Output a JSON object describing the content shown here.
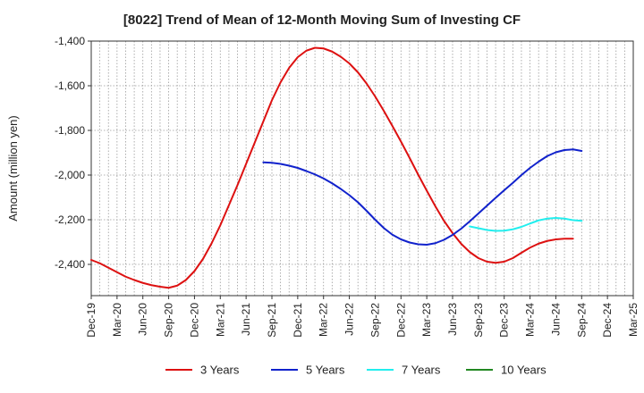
{
  "chart_data": {
    "type": "line",
    "title": "[8022]  Trend of Mean of 12-Month Moving Sum of Investing CF",
    "xlabel": "",
    "ylabel": "Amount (million yen)",
    "ylim": [
      -2540,
      -1400
    ],
    "yticks": [
      -1400,
      -1600,
      -1800,
      -2000,
      -2200,
      -2400
    ],
    "ytick_labels": [
      "-1,400",
      "-1,600",
      "-1,800",
      "-2,000",
      "-2,200",
      "-2,400"
    ],
    "x_tick_labels": [
      "Dec-19",
      "Mar-20",
      "Jun-20",
      "Sep-20",
      "Dec-20",
      "Mar-21",
      "Jun-21",
      "Sep-21",
      "Dec-21",
      "Mar-22",
      "Jun-22",
      "Sep-22",
      "Dec-22",
      "Mar-23",
      "Jun-23",
      "Sep-23",
      "Dec-23",
      "Mar-24",
      "Jun-24",
      "Sep-24",
      "Dec-24",
      "Mar-25"
    ],
    "grid": true,
    "legend_position": "bottom",
    "series": [
      {
        "name": "3 Years",
        "color": "#dd1111",
        "points": [
          {
            "x": "Dec-19",
            "y": -2380
          },
          {
            "x": "Jan-20",
            "y": -2395
          },
          {
            "x": "Feb-20",
            "y": -2415
          },
          {
            "x": "Mar-20",
            "y": -2435
          },
          {
            "x": "Apr-20",
            "y": -2455
          },
          {
            "x": "May-20",
            "y": -2470
          },
          {
            "x": "Jun-20",
            "y": -2483
          },
          {
            "x": "Jul-20",
            "y": -2493
          },
          {
            "x": "Aug-20",
            "y": -2500
          },
          {
            "x": "Sep-20",
            "y": -2505
          },
          {
            "x": "Oct-20",
            "y": -2495
          },
          {
            "x": "Nov-20",
            "y": -2470
          },
          {
            "x": "Dec-20",
            "y": -2430
          },
          {
            "x": "Jan-21",
            "y": -2375
          },
          {
            "x": "Feb-21",
            "y": -2305
          },
          {
            "x": "Mar-21",
            "y": -2225
          },
          {
            "x": "Apr-21",
            "y": -2135
          },
          {
            "x": "May-21",
            "y": -2045
          },
          {
            "x": "Jun-21",
            "y": -1950
          },
          {
            "x": "Jul-21",
            "y": -1855
          },
          {
            "x": "Aug-21",
            "y": -1760
          },
          {
            "x": "Sep-21",
            "y": -1665
          },
          {
            "x": "Oct-21",
            "y": -1585
          },
          {
            "x": "Nov-21",
            "y": -1520
          },
          {
            "x": "Dec-21",
            "y": -1472
          },
          {
            "x": "Jan-22",
            "y": -1443
          },
          {
            "x": "Feb-22",
            "y": -1430
          },
          {
            "x": "Mar-22",
            "y": -1433
          },
          {
            "x": "Apr-22",
            "y": -1447
          },
          {
            "x": "May-22",
            "y": -1470
          },
          {
            "x": "Jun-22",
            "y": -1500
          },
          {
            "x": "Jul-22",
            "y": -1540
          },
          {
            "x": "Aug-22",
            "y": -1590
          },
          {
            "x": "Sep-22",
            "y": -1648
          },
          {
            "x": "Oct-22",
            "y": -1712
          },
          {
            "x": "Nov-22",
            "y": -1780
          },
          {
            "x": "Dec-22",
            "y": -1850
          },
          {
            "x": "Jan-23",
            "y": -1923
          },
          {
            "x": "Feb-23",
            "y": -1998
          },
          {
            "x": "Mar-23",
            "y": -2070
          },
          {
            "x": "Apr-23",
            "y": -2140
          },
          {
            "x": "May-23",
            "y": -2205
          },
          {
            "x": "Jun-23",
            "y": -2260
          },
          {
            "x": "Jul-23",
            "y": -2308
          },
          {
            "x": "Aug-23",
            "y": -2345
          },
          {
            "x": "Sep-23",
            "y": -2372
          },
          {
            "x": "Oct-23",
            "y": -2388
          },
          {
            "x": "Nov-23",
            "y": -2393
          },
          {
            "x": "Dec-23",
            "y": -2388
          },
          {
            "x": "Jan-24",
            "y": -2372
          },
          {
            "x": "Feb-24",
            "y": -2348
          },
          {
            "x": "Mar-24",
            "y": -2325
          },
          {
            "x": "Apr-24",
            "y": -2307
          },
          {
            "x": "May-24",
            "y": -2295
          },
          {
            "x": "Jun-24",
            "y": -2288
          },
          {
            "x": "Jul-24",
            "y": -2285
          },
          {
            "x": "Aug-24",
            "y": -2285
          }
        ]
      },
      {
        "name": "5 Years",
        "color": "#1122cc",
        "points": [
          {
            "x": "Aug-21",
            "y": -1943
          },
          {
            "x": "Sep-21",
            "y": -1945
          },
          {
            "x": "Oct-21",
            "y": -1950
          },
          {
            "x": "Nov-21",
            "y": -1958
          },
          {
            "x": "Dec-21",
            "y": -1968
          },
          {
            "x": "Jan-22",
            "y": -1982
          },
          {
            "x": "Feb-22",
            "y": -1997
          },
          {
            "x": "Mar-22",
            "y": -2015
          },
          {
            "x": "Apr-22",
            "y": -2037
          },
          {
            "x": "May-22",
            "y": -2062
          },
          {
            "x": "Jun-22",
            "y": -2090
          },
          {
            "x": "Jul-22",
            "y": -2122
          },
          {
            "x": "Aug-22",
            "y": -2160
          },
          {
            "x": "Sep-22",
            "y": -2200
          },
          {
            "x": "Oct-22",
            "y": -2237
          },
          {
            "x": "Nov-22",
            "y": -2267
          },
          {
            "x": "Dec-22",
            "y": -2288
          },
          {
            "x": "Jan-23",
            "y": -2302
          },
          {
            "x": "Feb-23",
            "y": -2310
          },
          {
            "x": "Mar-23",
            "y": -2312
          },
          {
            "x": "Apr-23",
            "y": -2305
          },
          {
            "x": "May-23",
            "y": -2290
          },
          {
            "x": "Jun-23",
            "y": -2268
          },
          {
            "x": "Jul-23",
            "y": -2240
          },
          {
            "x": "Aug-23",
            "y": -2207
          },
          {
            "x": "Sep-23",
            "y": -2172
          },
          {
            "x": "Oct-23",
            "y": -2137
          },
          {
            "x": "Nov-23",
            "y": -2102
          },
          {
            "x": "Dec-23",
            "y": -2068
          },
          {
            "x": "Jan-24",
            "y": -2035
          },
          {
            "x": "Feb-24",
            "y": -2000
          },
          {
            "x": "Mar-24",
            "y": -1968
          },
          {
            "x": "Apr-24",
            "y": -1940
          },
          {
            "x": "May-24",
            "y": -1915
          },
          {
            "x": "Jun-24",
            "y": -1898
          },
          {
            "x": "Jul-24",
            "y": -1888
          },
          {
            "x": "Aug-24",
            "y": -1885
          },
          {
            "x": "Sep-24",
            "y": -1892
          }
        ]
      },
      {
        "name": "7 Years",
        "color": "#22eeee",
        "points": [
          {
            "x": "Aug-23",
            "y": -2230
          },
          {
            "x": "Sep-23",
            "y": -2238
          },
          {
            "x": "Oct-23",
            "y": -2246
          },
          {
            "x": "Nov-23",
            "y": -2250
          },
          {
            "x": "Dec-23",
            "y": -2249
          },
          {
            "x": "Jan-24",
            "y": -2243
          },
          {
            "x": "Feb-24",
            "y": -2232
          },
          {
            "x": "Mar-24",
            "y": -2217
          },
          {
            "x": "Apr-24",
            "y": -2203
          },
          {
            "x": "May-24",
            "y": -2195
          },
          {
            "x": "Jun-24",
            "y": -2192
          },
          {
            "x": "Jul-24",
            "y": -2195
          },
          {
            "x": "Aug-24",
            "y": -2202
          },
          {
            "x": "Sep-24",
            "y": -2205
          }
        ]
      },
      {
        "name": "10 Years",
        "color": "#228822",
        "points": []
      }
    ]
  }
}
